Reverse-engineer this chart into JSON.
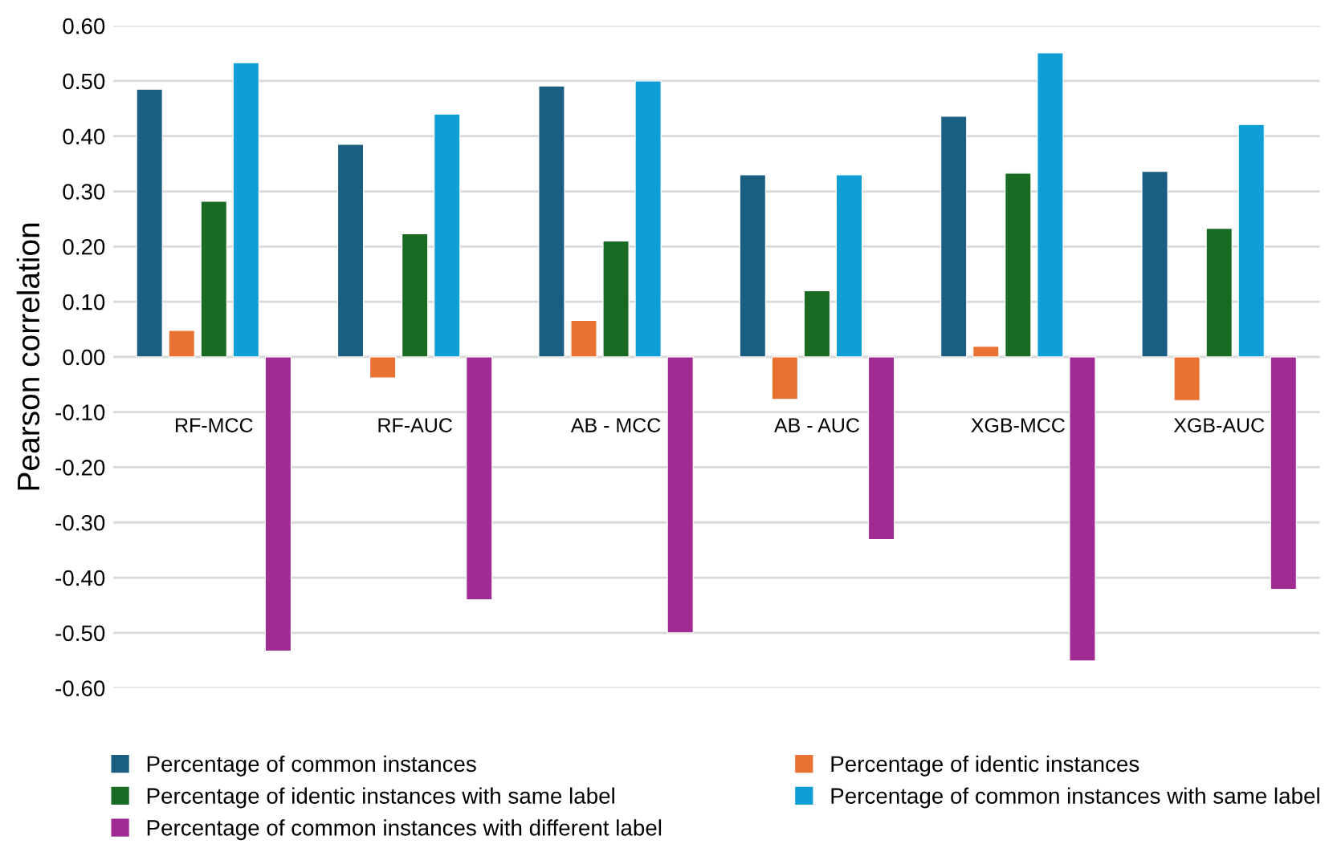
{
  "chart_data": {
    "type": "bar",
    "ylabel": "Pearson correlation",
    "categories": [
      "RF-MCC",
      "RF-AUC",
      "AB - MCC",
      "AB - AUC",
      "XGB-MCC",
      "XGB-AUC"
    ],
    "series": [
      {
        "name": "Percentage of common instances",
        "color": "#1a5f82",
        "values": [
          0.485,
          0.385,
          0.491,
          0.33,
          0.436,
          0.336
        ]
      },
      {
        "name": "Percentage of identic instances",
        "color": "#e97132",
        "values": [
          0.048,
          -0.038,
          0.066,
          -0.077,
          0.019,
          -0.079
        ]
      },
      {
        "name": "Percentage of identic instances with same label",
        "color": "#196b24",
        "values": [
          0.282,
          0.223,
          0.21,
          0.12,
          0.333,
          0.233
        ]
      },
      {
        "name": "Percentage of common instances with same label",
        "color": "#0f9ed5",
        "values": [
          0.533,
          0.44,
          0.5,
          0.33,
          0.551,
          0.421
        ]
      },
      {
        "name": "Percentage of common instances with different label",
        "color": "#a02b93",
        "values": [
          -0.533,
          -0.44,
          -0.5,
          -0.331,
          -0.551,
          -0.421
        ]
      }
    ],
    "ylim": [
      -0.6,
      0.6
    ],
    "yticks": [
      {
        "value": -0.6,
        "label": "-0.60"
      },
      {
        "value": -0.5,
        "label": "-0.50"
      },
      {
        "value": -0.4,
        "label": "-0.40"
      },
      {
        "value": -0.3,
        "label": "-0.30"
      },
      {
        "value": -0.2,
        "label": "-0.20"
      },
      {
        "value": -0.1,
        "label": "-0.10"
      },
      {
        "value": 0,
        "label": "0.00"
      },
      {
        "value": 0.1,
        "label": "0.10"
      },
      {
        "value": 0.2,
        "label": "0.20"
      },
      {
        "value": 0.3,
        "label": "0.30"
      },
      {
        "value": 0.4,
        "label": "0.40"
      },
      {
        "value": 0.5,
        "label": "0.50"
      },
      {
        "value": 0.6,
        "label": "0.60"
      }
    ],
    "grid": "y",
    "legend": "bottom"
  }
}
